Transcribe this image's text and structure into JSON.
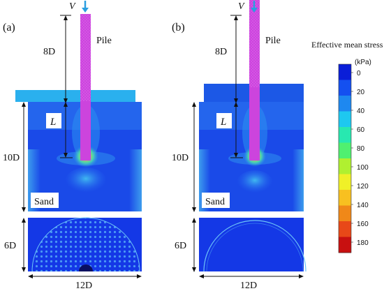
{
  "panels": [
    {
      "label": "(a)",
      "load_label": "V",
      "pile_label": "Pile",
      "pile_length_label": "8D",
      "embed_label": "L",
      "depth_label": "10D",
      "material_label": "Sand",
      "plan_depth_label": "6D",
      "width_label": "12D"
    },
    {
      "label": "(b)",
      "load_label": "V",
      "pile_label": "Pile",
      "pile_length_label": "8D",
      "embed_label": "L",
      "depth_label": "10D",
      "material_label": "Sand",
      "plan_depth_label": "6D",
      "width_label": "12D"
    }
  ],
  "colorbar": {
    "title": "Effective mean stress",
    "unit": "(kPa)",
    "ticks": [
      "0",
      "20",
      "40",
      "60",
      "80",
      "100",
      "120",
      "140",
      "160",
      "180"
    ],
    "colors": [
      "#0a1ed8",
      "#1450f0",
      "#1e88f0",
      "#1ec8f0",
      "#28e8b0",
      "#50f070",
      "#b0f030",
      "#f0f028",
      "#f8c020",
      "#f08818",
      "#e84818",
      "#c81010"
    ]
  },
  "colors": {
    "soil_deep": "#1538e8",
    "soil_mid": "#2466f0",
    "soil_light": "#3c9cf0",
    "soil_top_a": "#2aa8ee",
    "soil_top_b": "#1c58e6",
    "pile": "#cc44dd",
    "load_arrow": "#2a9ee0"
  }
}
